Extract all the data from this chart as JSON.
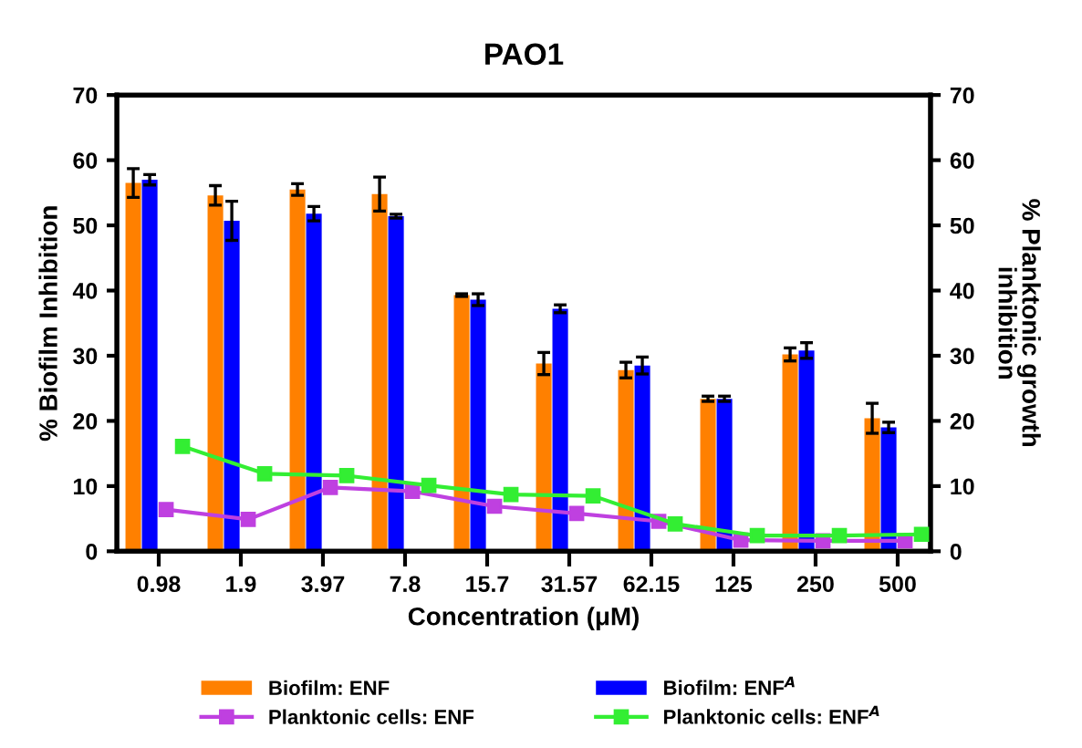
{
  "chart_data": {
    "type": "bar",
    "title": "PAO1",
    "xlabel": "Concentration (μM)",
    "ylabel": "% Biofilm Inhibition",
    "y2label": "% Planktonic growth\ninhibition",
    "categories": [
      "0.98",
      "1.9",
      "3.97",
      "7.8",
      "15.7",
      "31.57",
      "62.15",
      "125",
      "250",
      "500"
    ],
    "series": [
      {
        "name": "Biofilm: ENF",
        "color": "#ff8000",
        "values": [
          56.5,
          54.6,
          55.5,
          54.8,
          39.3,
          28.8,
          27.8,
          23.4,
          30.2,
          20.4
        ],
        "errors": [
          2.2,
          1.5,
          0.9,
          2.6,
          0.2,
          1.7,
          1.2,
          0.4,
          1.0,
          2.3
        ]
      },
      {
        "name": "Biofilm: ENF$^{A}$",
        "color": "#0000ff",
        "values": [
          57.0,
          50.7,
          51.8,
          51.4,
          38.6,
          37.2,
          28.5,
          23.4,
          30.8,
          19.0
        ],
        "errors": [
          0.8,
          3.0,
          1.1,
          0.3,
          0.9,
          0.6,
          1.3,
          0.4,
          1.2,
          0.8
        ]
      },
      {
        "name": "Planktonic cells: ENF",
        "type": "line",
        "axis": "y2",
        "color": "#bf40e0",
        "marker": "square",
        "values": [
          6.4,
          4.9,
          9.8,
          9.2,
          6.9,
          5.8,
          4.6,
          1.7,
          1.6,
          1.6
        ]
      },
      {
        "name": "Planktonic cells: ENF$^{A}$",
        "type": "line",
        "axis": "y2",
        "color": "#33ee33",
        "marker": "square",
        "values": [
          16.1,
          11.9,
          11.6,
          10.1,
          8.7,
          8.5,
          4.2,
          2.4,
          2.4,
          2.6
        ]
      }
    ],
    "ylim": [
      0,
      70
    ],
    "yticks": [
      0,
      10,
      20,
      30,
      40,
      50,
      60,
      70
    ],
    "y2lim": [
      0,
      70
    ],
    "y2ticks": [
      0,
      10,
      20,
      30,
      40,
      50,
      60,
      70
    ],
    "legend": "bottom",
    "grid": false
  }
}
